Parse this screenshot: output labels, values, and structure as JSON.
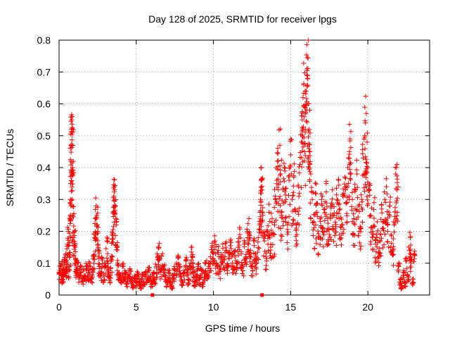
{
  "chart_data": {
    "type": "scatter",
    "title": "Day 128 of 2025, SRMTID for receiver lpgs",
    "xlabel": "GPS time / hours",
    "ylabel": "SRMTID / TECUs",
    "xlim": [
      0,
      24
    ],
    "ylim": [
      0,
      0.8
    ],
    "xticks": [
      0,
      5,
      10,
      15,
      20
    ],
    "yticks": [
      0,
      0.1,
      0.2,
      0.3,
      0.4,
      0.5,
      0.6,
      0.7,
      0.8
    ],
    "xtick_labels": [
      "0",
      "5",
      "10",
      "15",
      "20"
    ],
    "ytick_labels": [
      "0",
      "0.1",
      "0.2",
      "0.3",
      "0.4",
      "0.5",
      "0.6",
      "0.7",
      "0.8"
    ],
    "grid": true,
    "marker": "+",
    "color": "#ff0000",
    "zero_markers": [
      6.05,
      13.15
    ],
    "series": [
      {
        "name": "SRMTID",
        "points": [
          [
            0.0,
            0.07
          ],
          [
            0.1,
            0.09
          ],
          [
            0.15,
            0.06
          ],
          [
            0.2,
            0.1
          ],
          [
            0.25,
            0.05
          ],
          [
            0.3,
            0.08
          ],
          [
            0.35,
            0.11
          ],
          [
            0.4,
            0.07
          ],
          [
            0.45,
            0.13
          ],
          [
            0.5,
            0.09
          ],
          [
            0.55,
            0.16
          ],
          [
            0.6,
            0.2
          ],
          [
            0.65,
            0.08
          ],
          [
            0.7,
            0.12
          ],
          [
            0.72,
            0.24
          ],
          [
            0.74,
            0.3
          ],
          [
            0.75,
            0.35
          ],
          [
            0.76,
            0.42
          ],
          [
            0.78,
            0.47
          ],
          [
            0.8,
            0.52
          ],
          [
            0.82,
            0.55
          ],
          [
            0.85,
            0.56
          ],
          [
            0.87,
            0.51
          ],
          [
            0.88,
            0.4
          ],
          [
            0.9,
            0.25
          ],
          [
            0.95,
            0.18
          ],
          [
            1.0,
            0.2
          ],
          [
            1.05,
            0.15
          ],
          [
            1.1,
            0.11
          ],
          [
            1.15,
            0.08
          ],
          [
            1.2,
            0.1
          ],
          [
            1.3,
            0.06
          ],
          [
            1.4,
            0.09
          ],
          [
            1.5,
            0.05
          ],
          [
            1.6,
            0.08
          ],
          [
            1.7,
            0.06
          ],
          [
            1.8,
            0.09
          ],
          [
            1.9,
            0.07
          ],
          [
            2.0,
            0.1
          ],
          [
            2.1,
            0.05
          ],
          [
            2.2,
            0.08
          ],
          [
            2.25,
            0.12
          ],
          [
            2.3,
            0.18
          ],
          [
            2.35,
            0.24
          ],
          [
            2.4,
            0.28
          ],
          [
            2.45,
            0.25
          ],
          [
            2.5,
            0.2
          ],
          [
            2.55,
            0.14
          ],
          [
            2.6,
            0.09
          ],
          [
            2.7,
            0.07
          ],
          [
            2.8,
            0.11
          ],
          [
            2.9,
            0.06
          ],
          [
            3.0,
            0.09
          ],
          [
            3.1,
            0.17
          ],
          [
            3.15,
            0.13
          ],
          [
            3.2,
            0.08
          ],
          [
            3.3,
            0.06
          ],
          [
            3.4,
            0.11
          ],
          [
            3.45,
            0.19
          ],
          [
            3.5,
            0.26
          ],
          [
            3.55,
            0.31
          ],
          [
            3.58,
            0.34
          ],
          [
            3.6,
            0.33
          ],
          [
            3.65,
            0.28
          ],
          [
            3.7,
            0.22
          ],
          [
            3.75,
            0.15
          ],
          [
            3.8,
            0.1
          ],
          [
            3.9,
            0.07
          ],
          [
            4.0,
            0.06
          ],
          [
            4.1,
            0.09
          ],
          [
            4.2,
            0.05
          ],
          [
            4.3,
            0.07
          ],
          [
            4.4,
            0.04
          ],
          [
            4.5,
            0.06
          ],
          [
            4.6,
            0.08
          ],
          [
            4.7,
            0.05
          ],
          [
            4.8,
            0.03
          ],
          [
            4.9,
            0.06
          ],
          [
            5.0,
            0.04
          ],
          [
            5.1,
            0.07
          ],
          [
            5.2,
            0.05
          ],
          [
            5.3,
            0.03
          ],
          [
            5.4,
            0.06
          ],
          [
            5.5,
            0.04
          ],
          [
            5.6,
            0.07
          ],
          [
            5.7,
            0.05
          ],
          [
            5.8,
            0.08
          ],
          [
            5.9,
            0.06
          ],
          [
            6.0,
            0.04
          ],
          [
            6.1,
            0.07
          ],
          [
            6.2,
            0.05
          ],
          [
            6.3,
            0.09
          ],
          [
            6.4,
            0.12
          ],
          [
            6.45,
            0.15
          ],
          [
            6.5,
            0.11
          ],
          [
            6.6,
            0.08
          ],
          [
            6.7,
            0.13
          ],
          [
            6.8,
            0.09
          ],
          [
            6.9,
            0.06
          ],
          [
            7.0,
            0.04
          ],
          [
            7.1,
            0.07
          ],
          [
            7.2,
            0.05
          ],
          [
            7.3,
            0.03
          ],
          [
            7.4,
            0.06
          ],
          [
            7.5,
            0.08
          ],
          [
            7.6,
            0.1
          ],
          [
            7.7,
            0.12
          ],
          [
            7.8,
            0.09
          ],
          [
            7.9,
            0.06
          ],
          [
            8.0,
            0.04
          ],
          [
            8.1,
            0.07
          ],
          [
            8.2,
            0.11
          ],
          [
            8.3,
            0.08
          ],
          [
            8.4,
            0.05
          ],
          [
            8.5,
            0.09
          ],
          [
            8.6,
            0.15
          ],
          [
            8.65,
            0.12
          ],
          [
            8.7,
            0.07
          ],
          [
            8.8,
            0.04
          ],
          [
            8.9,
            0.06
          ],
          [
            9.0,
            0.09
          ],
          [
            9.1,
            0.05
          ],
          [
            9.2,
            0.08
          ],
          [
            9.3,
            0.04
          ],
          [
            9.4,
            0.07
          ],
          [
            9.5,
            0.1
          ],
          [
            9.6,
            0.06
          ],
          [
            9.7,
            0.09
          ],
          [
            9.8,
            0.12
          ],
          [
            9.9,
            0.15
          ],
          [
            10.0,
            0.13
          ],
          [
            10.1,
            0.17
          ],
          [
            10.2,
            0.1
          ],
          [
            10.3,
            0.14
          ],
          [
            10.4,
            0.08
          ],
          [
            10.5,
            0.12
          ],
          [
            10.6,
            0.16
          ],
          [
            10.7,
            0.11
          ],
          [
            10.8,
            0.15
          ],
          [
            10.9,
            0.09
          ],
          [
            11.0,
            0.13
          ],
          [
            11.1,
            0.17
          ],
          [
            11.2,
            0.12
          ],
          [
            11.3,
            0.08
          ],
          [
            11.4,
            0.14
          ],
          [
            11.5,
            0.1
          ],
          [
            11.6,
            0.15
          ],
          [
            11.7,
            0.19
          ],
          [
            11.8,
            0.13
          ],
          [
            11.9,
            0.09
          ],
          [
            12.0,
            0.16
          ],
          [
            12.1,
            0.12
          ],
          [
            12.2,
            0.2
          ],
          [
            12.3,
            0.24
          ],
          [
            12.35,
            0.18
          ],
          [
            12.4,
            0.14
          ],
          [
            12.5,
            0.09
          ],
          [
            12.6,
            0.17
          ],
          [
            12.7,
            0.13
          ],
          [
            12.8,
            0.1
          ],
          [
            12.9,
            0.18
          ],
          [
            13.0,
            0.22
          ],
          [
            13.05,
            0.3
          ],
          [
            13.08,
            0.36
          ],
          [
            13.1,
            0.4
          ],
          [
            13.15,
            0.33
          ],
          [
            13.2,
            0.25
          ],
          [
            13.3,
            0.17
          ],
          [
            13.4,
            0.12
          ],
          [
            13.5,
            0.2
          ],
          [
            13.6,
            0.26
          ],
          [
            13.7,
            0.15
          ],
          [
            13.8,
            0.24
          ],
          [
            13.9,
            0.19
          ],
          [
            14.0,
            0.3
          ],
          [
            14.1,
            0.36
          ],
          [
            14.15,
            0.42
          ],
          [
            14.2,
            0.33
          ],
          [
            14.3,
            0.47
          ],
          [
            14.35,
            0.38
          ],
          [
            14.4,
            0.25
          ],
          [
            14.5,
            0.33
          ],
          [
            14.6,
            0.4
          ],
          [
            14.7,
            0.3
          ],
          [
            14.8,
            0.22
          ],
          [
            14.9,
            0.36
          ],
          [
            15.0,
            0.44
          ],
          [
            15.1,
            0.3
          ],
          [
            15.2,
            0.37
          ],
          [
            15.3,
            0.27
          ],
          [
            15.4,
            0.19
          ],
          [
            15.5,
            0.34
          ],
          [
            15.6,
            0.41
          ],
          [
            15.7,
            0.48
          ],
          [
            15.75,
            0.55
          ],
          [
            15.8,
            0.62
          ],
          [
            15.85,
            0.66
          ],
          [
            15.9,
            0.59
          ],
          [
            15.95,
            0.52
          ],
          [
            16.0,
            0.64
          ],
          [
            16.05,
            0.71
          ],
          [
            16.08,
            0.745
          ],
          [
            16.1,
            0.68
          ],
          [
            16.15,
            0.6
          ],
          [
            16.2,
            0.52
          ],
          [
            16.25,
            0.45
          ],
          [
            16.3,
            0.38
          ],
          [
            16.4,
            0.3
          ],
          [
            16.5,
            0.23
          ],
          [
            16.6,
            0.32
          ],
          [
            16.7,
            0.26
          ],
          [
            16.8,
            0.18
          ],
          [
            16.9,
            0.24
          ],
          [
            17.0,
            0.3
          ],
          [
            17.1,
            0.21
          ],
          [
            17.2,
            0.27
          ],
          [
            17.3,
            0.35
          ],
          [
            17.4,
            0.24
          ],
          [
            17.5,
            0.19
          ],
          [
            17.6,
            0.28
          ],
          [
            17.7,
            0.33
          ],
          [
            17.8,
            0.25
          ],
          [
            17.9,
            0.21
          ],
          [
            18.0,
            0.3
          ],
          [
            18.1,
            0.36
          ],
          [
            18.2,
            0.27
          ],
          [
            18.3,
            0.22
          ],
          [
            18.4,
            0.31
          ],
          [
            18.5,
            0.37
          ],
          [
            18.6,
            0.29
          ],
          [
            18.7,
            0.4
          ],
          [
            18.8,
            0.45
          ],
          [
            18.85,
            0.49
          ],
          [
            18.9,
            0.38
          ],
          [
            19.0,
            0.3
          ],
          [
            19.1,
            0.24
          ],
          [
            19.2,
            0.33
          ],
          [
            19.3,
            0.38
          ],
          [
            19.4,
            0.28
          ],
          [
            19.5,
            0.21
          ],
          [
            19.6,
            0.3
          ],
          [
            19.7,
            0.43
          ],
          [
            19.8,
            0.5
          ],
          [
            19.85,
            0.54
          ],
          [
            19.9,
            0.57
          ],
          [
            19.95,
            0.48
          ],
          [
            20.0,
            0.4
          ],
          [
            20.1,
            0.33
          ],
          [
            20.2,
            0.25
          ],
          [
            20.3,
            0.2
          ],
          [
            20.4,
            0.29
          ],
          [
            20.5,
            0.16
          ],
          [
            20.6,
            0.23
          ],
          [
            20.7,
            0.12
          ],
          [
            20.8,
            0.19
          ],
          [
            20.9,
            0.27
          ],
          [
            21.0,
            0.21
          ],
          [
            21.1,
            0.3
          ],
          [
            21.2,
            0.34
          ],
          [
            21.3,
            0.22
          ],
          [
            21.4,
            0.28
          ],
          [
            21.5,
            0.19
          ],
          [
            21.6,
            0.14
          ],
          [
            21.7,
            0.22
          ],
          [
            21.8,
            0.38
          ],
          [
            21.85,
            0.4
          ],
          [
            21.9,
            0.33
          ],
          [
            22.0,
            0.09
          ],
          [
            22.1,
            0.05
          ],
          [
            22.2,
            0.03
          ],
          [
            22.3,
            0.07
          ],
          [
            22.4,
            0.04
          ],
          [
            22.5,
            0.11
          ],
          [
            22.6,
            0.06
          ],
          [
            22.7,
            0.14
          ],
          [
            22.75,
            0.18
          ],
          [
            22.8,
            0.1
          ],
          [
            22.9,
            0.05
          ],
          [
            23.0,
            0.13
          ]
        ]
      }
    ]
  }
}
